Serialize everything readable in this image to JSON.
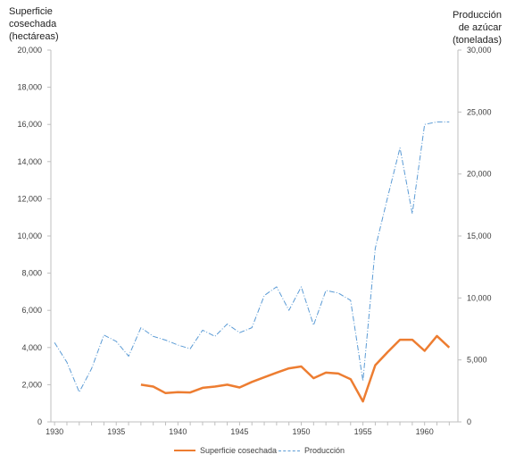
{
  "chart_data": {
    "type": "line",
    "y_left_title": "Superficie cosechada (hectáreas)",
    "y_left_title_lines": [
      "Superficie",
      "cosechada",
      "(hectáreas)"
    ],
    "y_right_title_lines": [
      "Producción",
      "de azúcar",
      "(toneladas)"
    ],
    "x_ticks": [
      1930,
      1935,
      1940,
      1945,
      1950,
      1955,
      1960
    ],
    "x_range": [
      1929.7,
      1962.7
    ],
    "y_left_range": [
      0,
      20000
    ],
    "y_left_ticks": [
      "0",
      "2,000",
      "4,000",
      "6,000",
      "8,000",
      "10,000",
      "12,000",
      "14,000",
      "16,000",
      "18,000",
      "20,000"
    ],
    "y_right_range": [
      0,
      30000
    ],
    "y_right_ticks": [
      "0",
      "5,000",
      "10,000",
      "15,000",
      "20,000",
      "25,000",
      "30,000"
    ],
    "grid": false,
    "legend_position": "bottom",
    "series": [
      {
        "name": "Superficie cosechada",
        "axis": "left",
        "color": "#ED7D31",
        "style": "solid",
        "x": [
          1937,
          1938,
          1939,
          1940,
          1941,
          1942,
          1943,
          1944,
          1945,
          1946,
          1947,
          1948,
          1949,
          1950,
          1951,
          1952,
          1953,
          1954,
          1955,
          1956,
          1957,
          1958,
          1959,
          1960,
          1961,
          1962
        ],
        "values": [
          2000,
          1900,
          1550,
          1600,
          1580,
          1830,
          1900,
          2000,
          1850,
          2150,
          2400,
          2650,
          2880,
          2980,
          2350,
          2650,
          2600,
          2300,
          1100,
          3050,
          3750,
          4420,
          4420,
          3820,
          4620,
          4000
        ]
      },
      {
        "name": "Producción",
        "axis": "right",
        "color": "#5B9BD5",
        "style": "dash-dot",
        "x": [
          1930,
          1931,
          1932,
          1933,
          1934,
          1935,
          1936,
          1937,
          1938,
          1939,
          1940,
          1941,
          1942,
          1943,
          1944,
          1945,
          1946,
          1947,
          1948,
          1949,
          1950,
          1951,
          1952,
          1953,
          1954,
          1955,
          1956,
          1957,
          1958,
          1959,
          1960,
          1961,
          1962
        ],
        "values": [
          6400,
          4800,
          2400,
          4300,
          7000,
          6500,
          5300,
          7600,
          6900,
          6600,
          6200,
          5900,
          7400,
          6900,
          7900,
          7200,
          7600,
          10200,
          10900,
          9000,
          10900,
          7800,
          10600,
          10400,
          9800,
          3300,
          14000,
          18100,
          22100,
          16800,
          24000,
          24200,
          24200
        ]
      }
    ]
  }
}
